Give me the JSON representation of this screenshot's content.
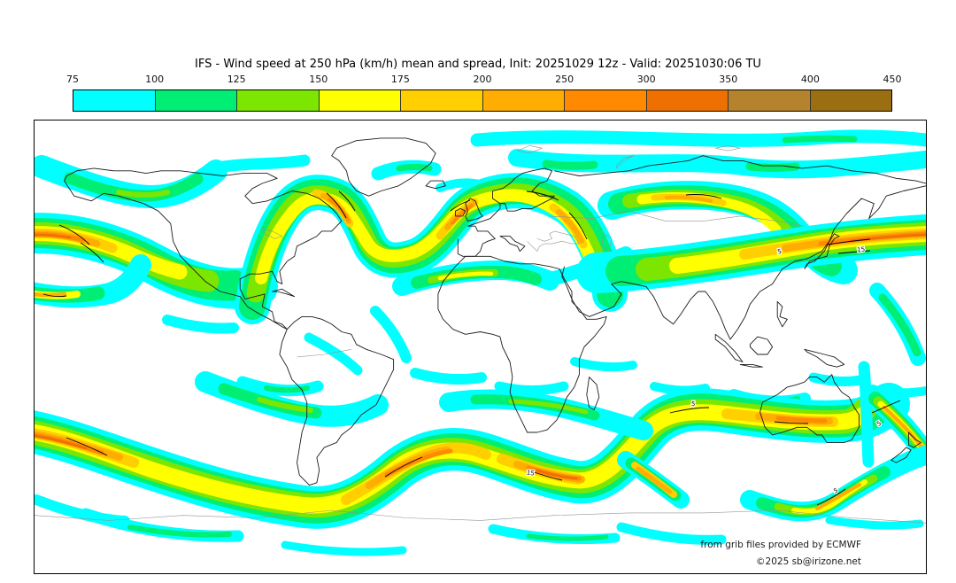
{
  "title": "IFS - Wind speed at 250 hPa (km/h) mean and spread, Init: 20251029 12z - Valid: 20251030:06 TU",
  "colorbar": {
    "tick_labels": [
      "75",
      "100",
      "125",
      "150",
      "175",
      "200",
      "250",
      "300",
      "350",
      "400",
      "450"
    ],
    "segments": [
      {
        "range": "75-100",
        "color": "#00FFFF"
      },
      {
        "range": "100-125",
        "color": "#00EE73"
      },
      {
        "range": "125-150",
        "color": "#7CE600"
      },
      {
        "range": "150-175",
        "color": "#FFFF00"
      },
      {
        "range": "175-200",
        "color": "#FFCF00"
      },
      {
        "range": "200-250",
        "color": "#FFAD00"
      },
      {
        "range": "250-300",
        "color": "#FF8A00"
      },
      {
        "range": "300-350",
        "color": "#EE7000"
      },
      {
        "range": "350-400",
        "color": "#B5832D"
      },
      {
        "range": "400-450",
        "color": "#9C6E12"
      }
    ],
    "palette": {
      "c75": "#00FFFF",
      "c100": "#00EE73",
      "c125": "#7CE600",
      "c150": "#FFFF00",
      "c175": "#FFCF00",
      "c200": "#FFAD00",
      "c250": "#FF8A00",
      "c300": "#EE7000",
      "c350": "#B5832D",
      "c400": "#9C6E12"
    }
  },
  "attribution": {
    "line1": "from grib files provided by ECMWF",
    "line2": "©2025 sb@irizone.net"
  },
  "map": {
    "spread_contour_labels": [
      "5",
      "15"
    ]
  },
  "chart_data": {
    "type": "heatmap",
    "subtype": "filled-contour world map (equirectangular)",
    "variable": "Wind speed at 250 hPa",
    "units": "km/h",
    "statistic": "mean and spread",
    "model": "IFS",
    "init": "20251029 12z",
    "valid": "20251030:06 TU",
    "levels": [
      75,
      100,
      125,
      150,
      175,
      200,
      250,
      300,
      350,
      400,
      450
    ],
    "level_colors": [
      "#00FFFF",
      "#00EE73",
      "#7CE600",
      "#FFFF00",
      "#FFCF00",
      "#FFAD00",
      "#FF8A00",
      "#EE7000",
      "#B5832D",
      "#9C6E12"
    ],
    "legend_position": "top",
    "spread_contour_labels_on_map": [
      "5",
      "15"
    ]
  }
}
